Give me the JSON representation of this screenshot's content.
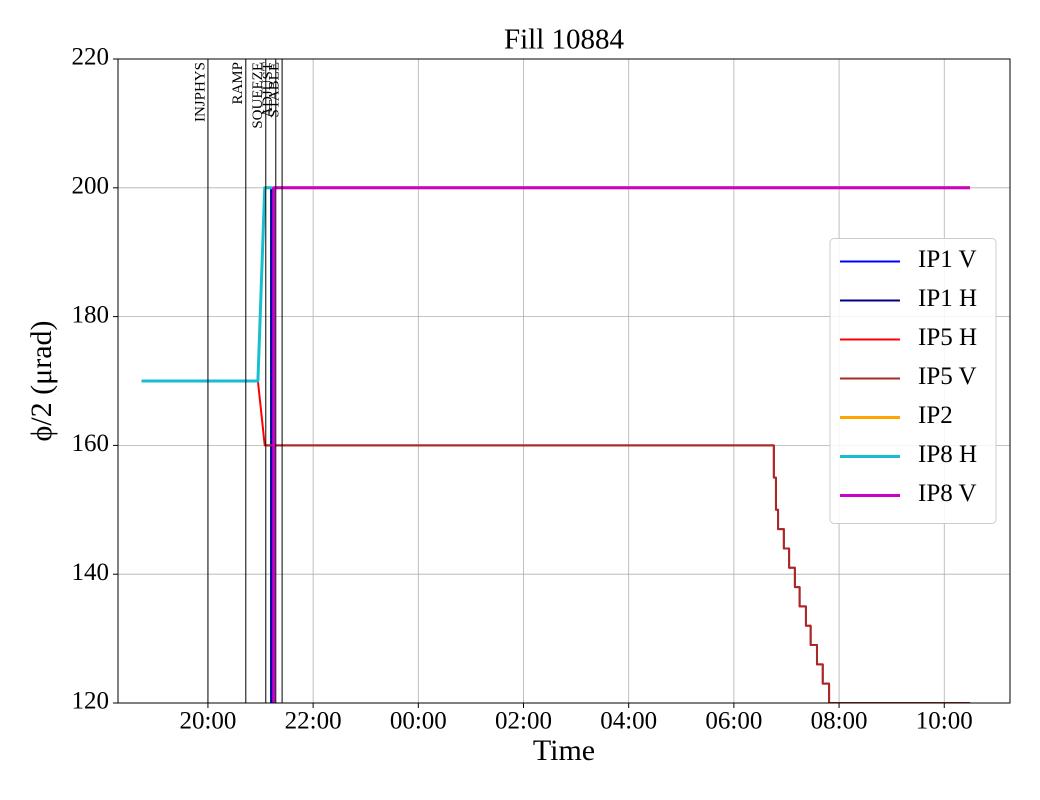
{
  "chart_data": {
    "type": "line",
    "title": "Fill 10884",
    "xlabel": "Time",
    "ylabel": "ϕ/2 (μrad)",
    "xlim": [
      18.29,
      35.25
    ],
    "xticks": [
      {
        "value": 20,
        "label": "20:00"
      },
      {
        "value": 22,
        "label": "22:00"
      },
      {
        "value": 24,
        "label": "00:00"
      },
      {
        "value": 26,
        "label": "02:00"
      },
      {
        "value": 28,
        "label": "04:00"
      },
      {
        "value": 30,
        "label": "06:00"
      },
      {
        "value": 32,
        "label": "08:00"
      },
      {
        "value": 34,
        "label": "10:00"
      }
    ],
    "ylim": [
      120,
      220
    ],
    "yticks": [
      120,
      140,
      160,
      180,
      200,
      220
    ],
    "grid": true,
    "legend": "center right",
    "annotations": [
      {
        "label": "INJPHYS",
        "x": 20.0
      },
      {
        "label": "RAMP",
        "x": 20.72
      },
      {
        "label": "SQUEEZE",
        "x": 21.1
      },
      {
        "label": "ADJUST",
        "x": 21.29
      },
      {
        "label": "STABLE",
        "x": 21.41
      }
    ],
    "series": [
      {
        "name": "IP1 V",
        "color": "#0000ff",
        "width": 2,
        "x": [
          21.2,
          21.2
        ],
        "values": [
          200,
          120
        ]
      },
      {
        "name": "IP1 H",
        "color": "#00008b",
        "width": 2,
        "x": [
          21.21,
          21.21
        ],
        "values": [
          200,
          120
        ]
      },
      {
        "name": "IP5 H",
        "color": "#ff0000",
        "width": 2,
        "x": [
          18.74,
          20.95,
          21.08,
          30.76,
          30.76,
          30.8,
          30.8,
          30.84,
          30.84,
          30.95,
          30.95,
          31.05,
          31.05,
          31.16,
          31.16,
          31.25,
          31.25,
          31.37,
          31.37,
          31.46,
          31.46,
          31.58,
          31.58,
          31.69,
          31.69,
          31.81,
          31.81,
          34.49
        ],
        "values": [
          170,
          170,
          160,
          160,
          155,
          155,
          150,
          150,
          147,
          147,
          144,
          144,
          141,
          141,
          138,
          138,
          135,
          135,
          132,
          132,
          129,
          129,
          126,
          126,
          123,
          123,
          120,
          120
        ]
      },
      {
        "name": "IP5 V",
        "color": "#a52a2a",
        "width": 2,
        "x": [
          21.08,
          30.76,
          30.76,
          30.8,
          30.8,
          30.84,
          30.84,
          30.95,
          30.95,
          31.05,
          31.05,
          31.16,
          31.16,
          31.25,
          31.25,
          31.37,
          31.37,
          31.46,
          31.46,
          31.58,
          31.58,
          31.69,
          31.69,
          31.81,
          31.81,
          34.49
        ],
        "values": [
          160,
          160,
          155,
          155,
          150,
          150,
          147,
          147,
          144,
          144,
          141,
          141,
          138,
          138,
          135,
          135,
          132,
          132,
          129,
          129,
          126,
          126,
          123,
          123,
          120,
          120
        ]
      },
      {
        "name": "IP2",
        "color": "#ffa500",
        "width": 3,
        "x": [
          21.25,
          34.49
        ],
        "values": [
          200,
          200
        ]
      },
      {
        "name": "IP8 H",
        "color": "#17becf",
        "width": 3,
        "x": [
          18.74,
          20.95,
          21.08,
          21.22
        ],
        "values": [
          170,
          170,
          200,
          200
        ]
      },
      {
        "name": "IP8 V",
        "color": "#cc00cc",
        "width": 3,
        "x": [
          21.25,
          21.25,
          34.49
        ],
        "values": [
          120,
          200,
          200
        ]
      }
    ]
  }
}
